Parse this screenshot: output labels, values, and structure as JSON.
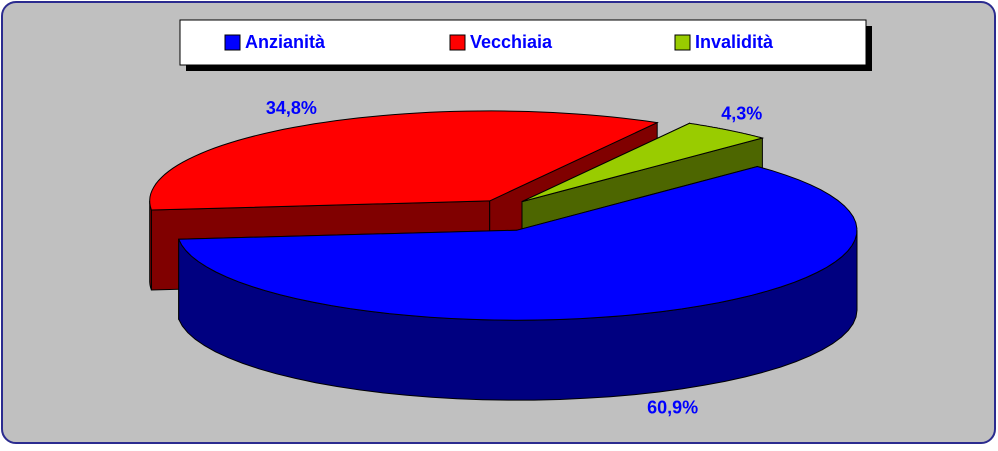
{
  "chart_data": {
    "type": "pie3d",
    "categories": [
      "Anzianità",
      "Vecchiaia",
      "Invalidità"
    ],
    "values": [
      60.9,
      34.8,
      4.3
    ],
    "value_labels": [
      "60,9%",
      "34,8%",
      "4,3%"
    ],
    "colors": [
      "#0000ff",
      "#ff0000",
      "#99cc00"
    ],
    "side_colors": [
      "#000080",
      "#800000",
      "#4d6600"
    ],
    "legend": "top"
  }
}
